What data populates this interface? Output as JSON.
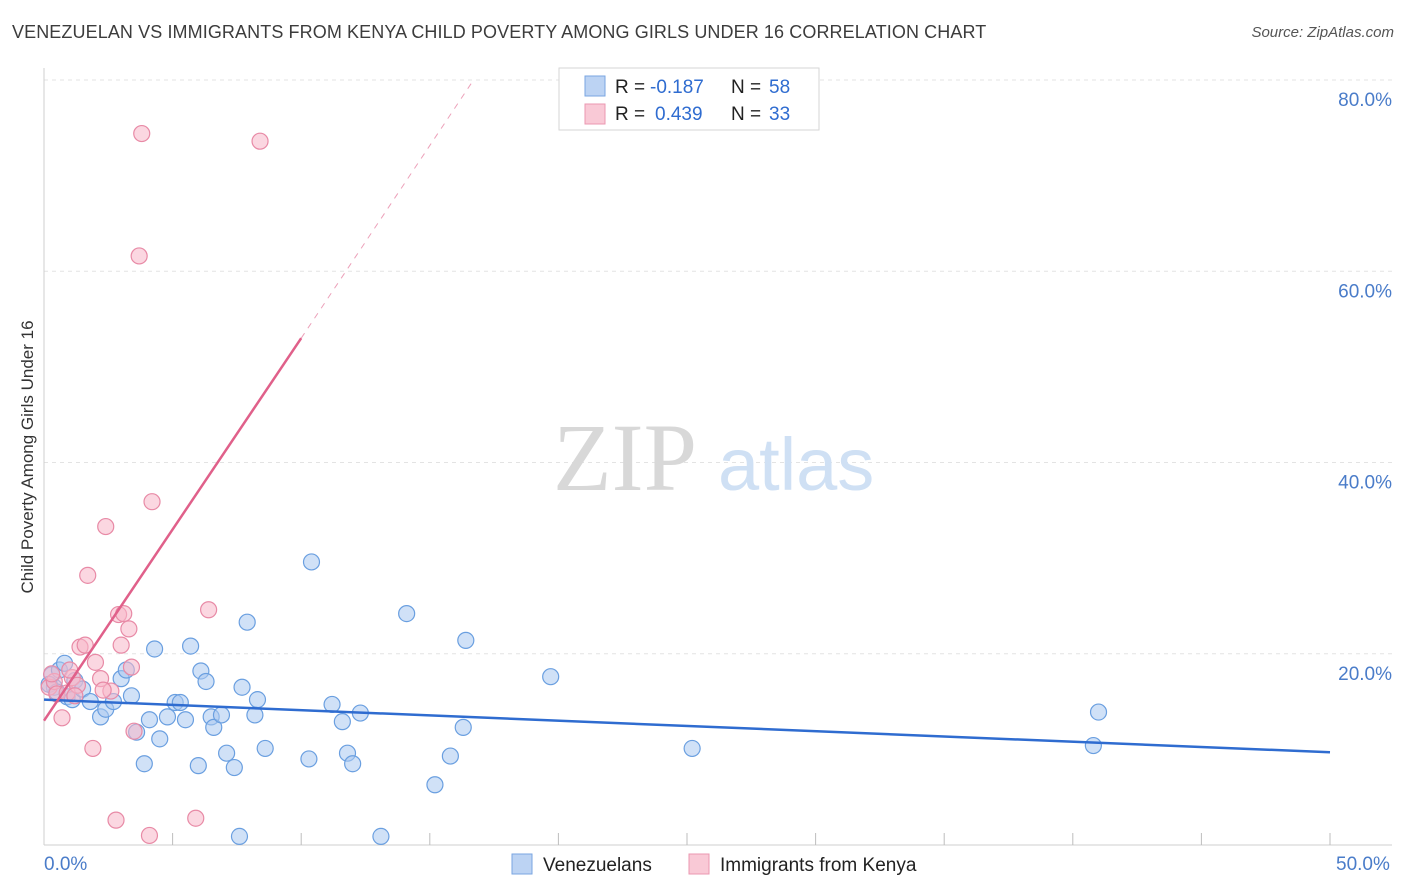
{
  "chart_data": {
    "type": "scatter",
    "title": "VENEZUELAN VS IMMIGRANTS FROM KENYA CHILD POVERTY AMONG GIRLS UNDER 16 CORRELATION CHART",
    "source": "Source: ZipAtlas.com",
    "ylabel": "Child Poverty Among Girls Under 16",
    "xlabel": "",
    "xlim": [
      0,
      50
    ],
    "ylim": [
      0,
      80
    ],
    "x_tick_labels": [
      "0.0%",
      "50.0%"
    ],
    "y_ticks": [
      20,
      40,
      60,
      80
    ],
    "y_tick_labels": [
      "20.0%",
      "40.0%",
      "60.0%",
      "80.0%"
    ],
    "watermark": {
      "zip": "ZIP",
      "atlas": "atlas"
    },
    "legend": {
      "r_label": "R =",
      "n_label": "N =",
      "entries": [
        {
          "r": "-0.187",
          "n": "58",
          "color": "#a9c8f0"
        },
        {
          "r": "0.439",
          "n": "33",
          "color": "#f7b7c8"
        }
      ]
    },
    "series": [
      {
        "name": "Venezuelans",
        "color": "#a9c8f0",
        "stroke": "#6a9fe0",
        "trend": {
          "x0": 0,
          "y0": 15.2,
          "x1": 50,
          "y1": 9.7,
          "color": "#2f6cd0"
        },
        "points": [
          [
            0.3,
            17.8
          ],
          [
            0.4,
            16.5
          ],
          [
            0.6,
            18.3
          ],
          [
            0.8,
            19.0
          ],
          [
            0.9,
            15.5
          ],
          [
            1.1,
            15.2
          ],
          [
            1.2,
            17.2
          ],
          [
            1.5,
            16.3
          ],
          [
            1.8,
            15.0
          ],
          [
            2.2,
            13.4
          ],
          [
            2.4,
            14.2
          ],
          [
            2.7,
            15.0
          ],
          [
            3.0,
            17.4
          ],
          [
            3.2,
            18.3
          ],
          [
            3.4,
            15.6
          ],
          [
            3.6,
            11.8
          ],
          [
            3.9,
            8.5
          ],
          [
            4.1,
            13.1
          ],
          [
            4.3,
            20.5
          ],
          [
            4.5,
            11.1
          ],
          [
            4.8,
            13.4
          ],
          [
            5.1,
            14.9
          ],
          [
            5.3,
            14.9
          ],
          [
            5.5,
            13.1
          ],
          [
            5.7,
            20.8
          ],
          [
            6.0,
            8.3
          ],
          [
            6.1,
            18.2
          ],
          [
            6.3,
            17.1
          ],
          [
            6.5,
            13.4
          ],
          [
            6.6,
            12.3
          ],
          [
            6.9,
            13.6
          ],
          [
            7.1,
            9.6
          ],
          [
            7.4,
            8.1
          ],
          [
            7.6,
            0.9
          ],
          [
            7.7,
            16.5
          ],
          [
            7.9,
            23.3
          ],
          [
            8.2,
            13.6
          ],
          [
            8.3,
            15.2
          ],
          [
            8.6,
            10.1
          ],
          [
            10.3,
            9.0
          ],
          [
            10.4,
            29.6
          ],
          [
            11.2,
            14.7
          ],
          [
            11.6,
            12.9
          ],
          [
            11.8,
            9.6
          ],
          [
            12.0,
            8.5
          ],
          [
            12.3,
            13.8
          ],
          [
            13.1,
            0.9
          ],
          [
            14.1,
            24.2
          ],
          [
            15.2,
            6.3
          ],
          [
            15.8,
            9.3
          ],
          [
            16.3,
            12.3
          ],
          [
            16.4,
            21.4
          ],
          [
            19.7,
            17.6
          ],
          [
            25.2,
            10.1
          ],
          [
            40.8,
            10.4
          ],
          [
            41.0,
            13.9
          ],
          [
            0.2,
            16.8
          ],
          [
            0.5,
            16.0
          ]
        ]
      },
      {
        "name": "Immigrants from Kenya",
        "color": "#f7b7c8",
        "stroke": "#e88aa6",
        "trend": {
          "x0": 0,
          "y0": 13.0,
          "x1": 10.0,
          "y1": 53.0,
          "color": "#e0608a",
          "ext_x1": 16.7,
          "ext_y1": 80.0
        },
        "points": [
          [
            0.2,
            16.5
          ],
          [
            0.4,
            17.1
          ],
          [
            0.5,
            15.8
          ],
          [
            0.7,
            13.3
          ],
          [
            0.9,
            15.9
          ],
          [
            1.1,
            17.5
          ],
          [
            1.3,
            16.7
          ],
          [
            1.4,
            20.7
          ],
          [
            1.6,
            20.9
          ],
          [
            1.7,
            28.2
          ],
          [
            1.9,
            10.1
          ],
          [
            2.0,
            19.1
          ],
          [
            2.2,
            17.4
          ],
          [
            2.4,
            33.3
          ],
          [
            2.6,
            16.1
          ],
          [
            2.8,
            2.6
          ],
          [
            2.9,
            24.1
          ],
          [
            3.0,
            20.9
          ],
          [
            3.1,
            24.2
          ],
          [
            3.3,
            22.6
          ],
          [
            3.5,
            11.9
          ],
          [
            3.7,
            61.6
          ],
          [
            3.8,
            74.4
          ],
          [
            4.1,
            1.0
          ],
          [
            4.2,
            35.9
          ],
          [
            5.9,
            2.8
          ],
          [
            6.4,
            24.6
          ],
          [
            8.4,
            73.6
          ],
          [
            1.0,
            18.3
          ],
          [
            0.3,
            17.9
          ],
          [
            1.2,
            15.6
          ],
          [
            2.3,
            16.2
          ],
          [
            3.4,
            18.6
          ]
        ]
      }
    ]
  }
}
